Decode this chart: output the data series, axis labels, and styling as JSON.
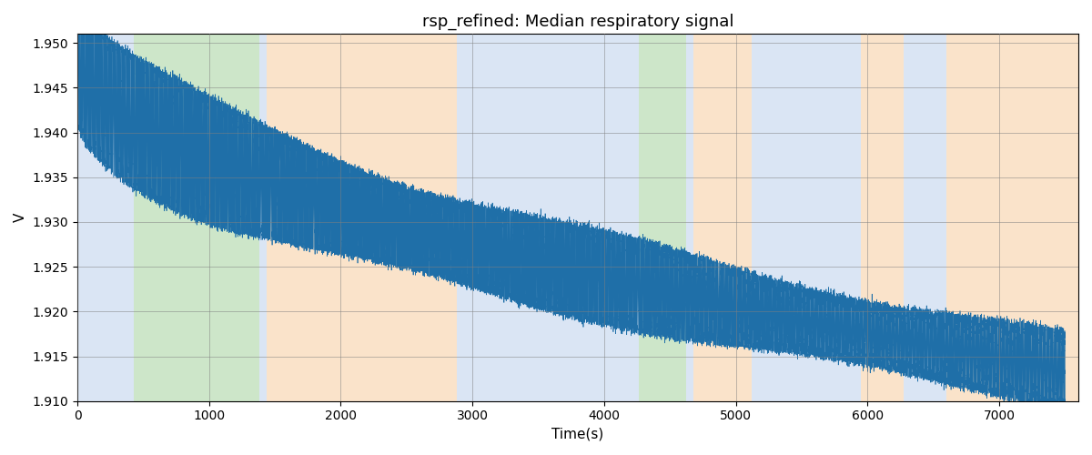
{
  "title": "rsp_refined: Median respiratory signal",
  "xlabel": "Time(s)",
  "ylabel": "V",
  "xlim": [
    0,
    7600
  ],
  "ylim": [
    1.91,
    1.951
  ],
  "yticks": [
    1.91,
    1.915,
    1.92,
    1.925,
    1.93,
    1.935,
    1.94,
    1.945,
    1.95
  ],
  "xticks": [
    0,
    1000,
    2000,
    3000,
    4000,
    5000,
    6000,
    7000
  ],
  "signal_color": "#1f6fa8",
  "signal_linewidth": 0.5,
  "bg_bands": [
    {
      "xmin": 0,
      "xmax": 430,
      "color": "#aec6e8",
      "alpha": 0.45
    },
    {
      "xmin": 430,
      "xmax": 1380,
      "color": "#90c988",
      "alpha": 0.45
    },
    {
      "xmin": 1380,
      "xmax": 1440,
      "color": "#aec6e8",
      "alpha": 0.45
    },
    {
      "xmin": 1440,
      "xmax": 2880,
      "color": "#f5c18a",
      "alpha": 0.45
    },
    {
      "xmin": 2880,
      "xmax": 3200,
      "color": "#aec6e8",
      "alpha": 0.45
    },
    {
      "xmin": 3200,
      "xmax": 3730,
      "color": "#aec6e8",
      "alpha": 0.45
    },
    {
      "xmin": 3730,
      "xmax": 4260,
      "color": "#aec6e8",
      "alpha": 0.45
    },
    {
      "xmin": 4260,
      "xmax": 4620,
      "color": "#90c988",
      "alpha": 0.45
    },
    {
      "xmin": 4620,
      "xmax": 4680,
      "color": "#aec6e8",
      "alpha": 0.45
    },
    {
      "xmin": 4680,
      "xmax": 5120,
      "color": "#f5c18a",
      "alpha": 0.45
    },
    {
      "xmin": 5120,
      "xmax": 5950,
      "color": "#aec6e8",
      "alpha": 0.45
    },
    {
      "xmin": 5950,
      "xmax": 6270,
      "color": "#f5c18a",
      "alpha": 0.45
    },
    {
      "xmin": 6270,
      "xmax": 6600,
      "color": "#aec6e8",
      "alpha": 0.45
    },
    {
      "xmin": 6600,
      "xmax": 7600,
      "color": "#f5c18a",
      "alpha": 0.45
    }
  ],
  "grid": true,
  "title_fontsize": 13,
  "axis_fontsize": 11,
  "trend_start": 1.9485,
  "trend_end": 1.9135,
  "trend_shape": 0.55,
  "freq_hz": 0.115,
  "amp_start": 0.007,
  "amp_end": 0.003,
  "amp_decay": 4000,
  "noise_level": 0.0003,
  "n_points": 75000,
  "t_max": 7500
}
